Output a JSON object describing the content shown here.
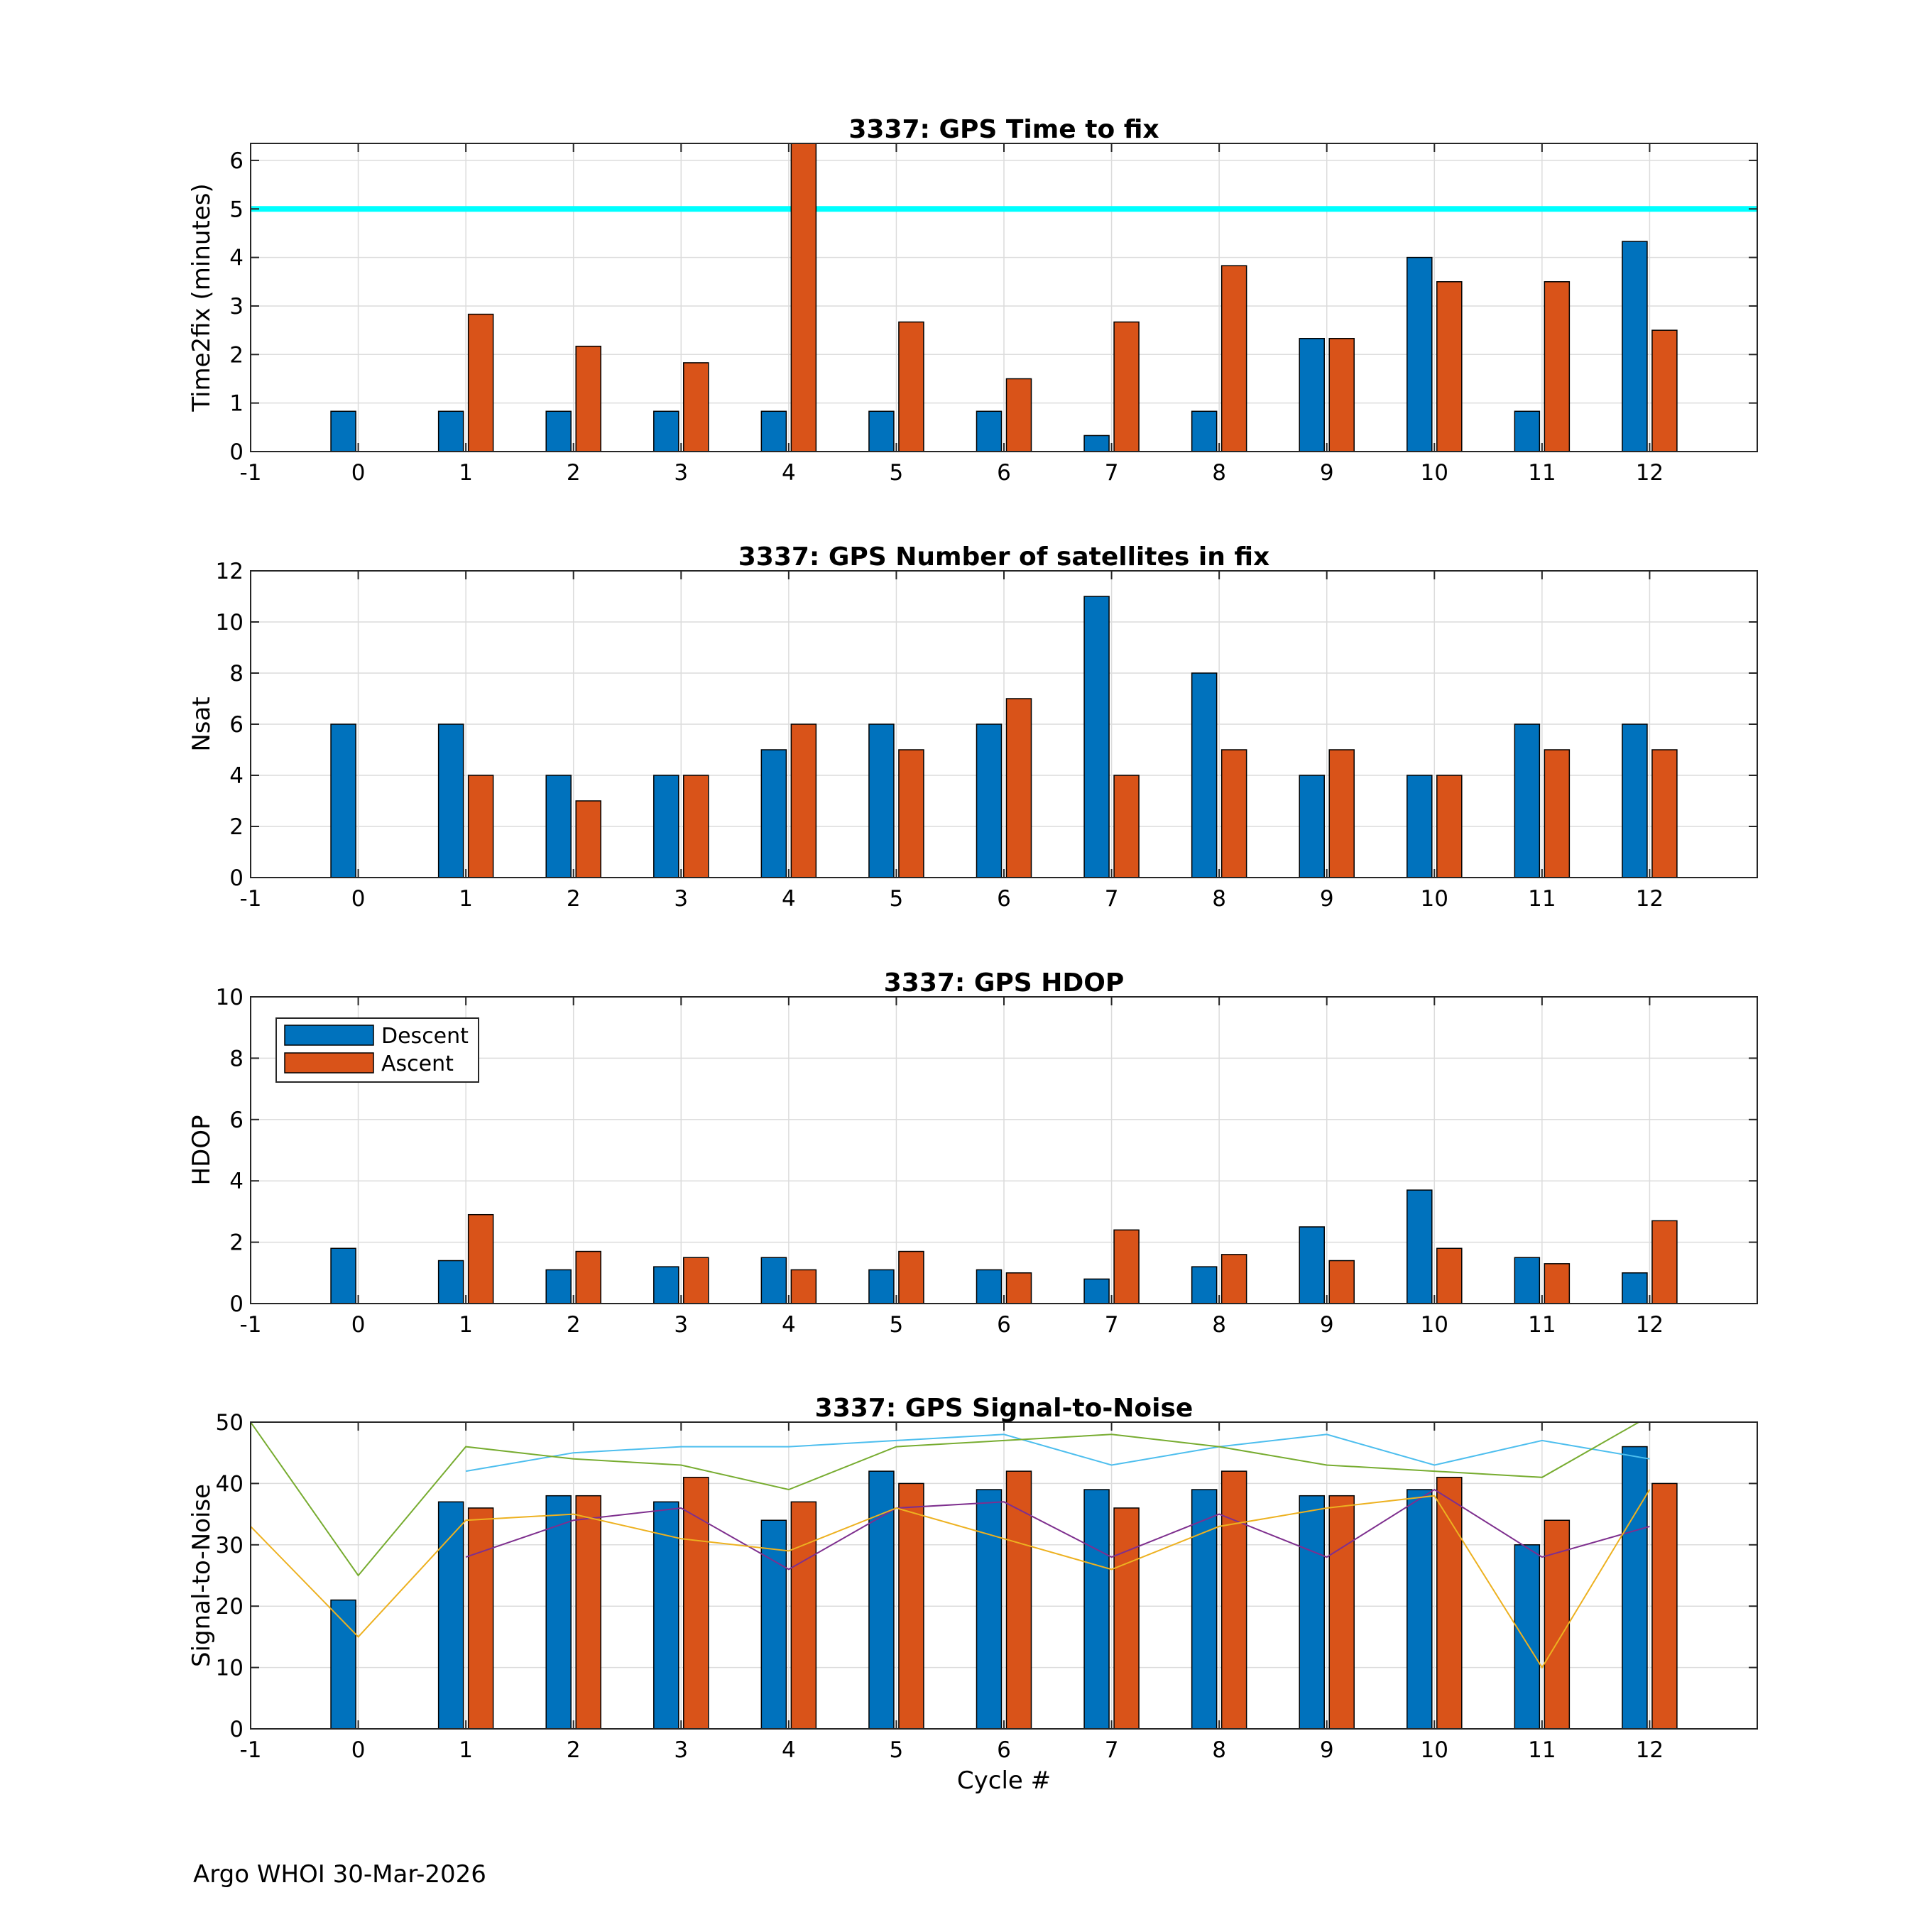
{
  "figure": {
    "footer": "Argo WHOI 30-Mar-2026",
    "colors": {
      "descent": "#0072BD",
      "ascent": "#D95319",
      "threshold": "#00FFFF",
      "snr_lines": [
        "#4DBEEE",
        "#77AC30",
        "#7E2F8E",
        "#EDB120"
      ]
    }
  },
  "chart_data": [
    {
      "type": "bar",
      "title": "3337: GPS Time to fix",
      "xlabel": "",
      "ylabel": "Time2fix (minutes)",
      "xlim": [
        -1,
        13
      ],
      "ylim": [
        0,
        6.35
      ],
      "xticks": [
        "-1",
        "0",
        "1",
        "2",
        "3",
        "4",
        "5",
        "6",
        "7",
        "8",
        "9",
        "10",
        "11",
        "12"
      ],
      "yticks": [
        "0",
        "1",
        "2",
        "3",
        "4",
        "5",
        "6"
      ],
      "grid": true,
      "categories": [
        0,
        1,
        2,
        3,
        4,
        5,
        6,
        7,
        8,
        9,
        10,
        11,
        12
      ],
      "series": [
        {
          "name": "Descent",
          "values": [
            0.83,
            0.83,
            0.83,
            0.83,
            0.83,
            0.83,
            0.83,
            0.33,
            0.83,
            2.33,
            4.0,
            0.83,
            4.33
          ]
        },
        {
          "name": "Ascent",
          "values": [
            null,
            2.83,
            2.17,
            1.83,
            6.35,
            2.67,
            1.5,
            2.67,
            3.83,
            2.33,
            3.5,
            3.5,
            2.5
          ]
        }
      ],
      "threshold": 5
    },
    {
      "type": "bar",
      "title": "3337: GPS Number of satellites in fix",
      "xlabel": "",
      "ylabel": "Nsat",
      "xlim": [
        -1,
        13
      ],
      "ylim": [
        0,
        12
      ],
      "xticks": [
        "-1",
        "0",
        "1",
        "2",
        "3",
        "4",
        "5",
        "6",
        "7",
        "8",
        "9",
        "10",
        "11",
        "12"
      ],
      "yticks": [
        "0",
        "2",
        "4",
        "6",
        "8",
        "10",
        "12"
      ],
      "grid": true,
      "categories": [
        0,
        1,
        2,
        3,
        4,
        5,
        6,
        7,
        8,
        9,
        10,
        11,
        12
      ],
      "series": [
        {
          "name": "Descent",
          "values": [
            6,
            6,
            4,
            4,
            5,
            6,
            6,
            11,
            8,
            4,
            4,
            6,
            6
          ]
        },
        {
          "name": "Ascent",
          "values": [
            null,
            4,
            3,
            4,
            6,
            5,
            7,
            4,
            5,
            5,
            4,
            5,
            5
          ]
        }
      ]
    },
    {
      "type": "bar",
      "title": "3337: GPS HDOP",
      "xlabel": "",
      "ylabel": "HDOP",
      "xlim": [
        -1,
        13
      ],
      "ylim": [
        0,
        10
      ],
      "xticks": [
        "-1",
        "0",
        "1",
        "2",
        "3",
        "4",
        "5",
        "6",
        "7",
        "8",
        "9",
        "10",
        "11",
        "12"
      ],
      "yticks": [
        "0",
        "2",
        "4",
        "6",
        "8",
        "10"
      ],
      "grid": true,
      "legend": {
        "position": "top-left",
        "entries": [
          "Descent",
          "Ascent"
        ]
      },
      "categories": [
        0,
        1,
        2,
        3,
        4,
        5,
        6,
        7,
        8,
        9,
        10,
        11,
        12
      ],
      "series": [
        {
          "name": "Descent",
          "values": [
            1.8,
            1.4,
            1.1,
            1.2,
            1.5,
            1.1,
            1.1,
            0.8,
            1.2,
            2.5,
            3.7,
            1.5,
            1.0
          ]
        },
        {
          "name": "Ascent",
          "values": [
            null,
            2.9,
            1.7,
            1.5,
            1.1,
            1.7,
            1.0,
            2.4,
            1.6,
            1.4,
            1.8,
            1.3,
            2.7
          ]
        }
      ]
    },
    {
      "type": "bar",
      "title": "3337: GPS Signal-to-Noise",
      "xlabel": "Cycle #",
      "ylabel": "Signal-to-Noise",
      "xlim": [
        -1,
        13
      ],
      "ylim": [
        0,
        50
      ],
      "xticks": [
        "-1",
        "0",
        "1",
        "2",
        "3",
        "4",
        "5",
        "6",
        "7",
        "8",
        "9",
        "10",
        "11",
        "12"
      ],
      "yticks": [
        "0",
        "10",
        "20",
        "30",
        "40",
        "50"
      ],
      "grid": true,
      "categories": [
        0,
        1,
        2,
        3,
        4,
        5,
        6,
        7,
        8,
        9,
        10,
        11,
        12
      ],
      "series": [
        {
          "name": "Descent",
          "values": [
            21,
            37,
            38,
            37,
            34,
            42,
            39,
            39,
            39,
            38,
            39,
            30,
            46
          ]
        },
        {
          "name": "Ascent",
          "values": [
            null,
            36,
            38,
            41,
            37,
            40,
            42,
            36,
            42,
            38,
            41,
            34,
            40
          ]
        }
      ],
      "lines": [
        {
          "name": "line-blue",
          "x": [
            1,
            2,
            3,
            4,
            5,
            6,
            7,
            8,
            9,
            10,
            11,
            12
          ],
          "y": [
            42,
            45,
            46,
            46,
            47,
            48,
            43,
            46,
            48,
            43,
            47,
            44
          ]
        },
        {
          "name": "line-green",
          "x": [
            -1,
            0,
            1,
            2,
            3,
            4,
            5,
            6,
            7,
            8,
            9,
            10,
            11,
            12
          ],
          "y": [
            50,
            25,
            46,
            44,
            43,
            39,
            46,
            47,
            48,
            46,
            43,
            42,
            41,
            51
          ]
        },
        {
          "name": "line-purple",
          "x": [
            1,
            2,
            3,
            4,
            5,
            6,
            7,
            8,
            9,
            10,
            11,
            12
          ],
          "y": [
            28,
            34,
            36,
            26,
            36,
            37,
            28,
            35,
            28,
            39,
            28,
            33
          ]
        },
        {
          "name": "line-yellow",
          "x": [
            -1,
            0,
            1,
            2,
            3,
            4,
            5,
            6,
            7,
            8,
            9,
            10,
            11,
            12
          ],
          "y": [
            33,
            15,
            34,
            35,
            31,
            29,
            36,
            31,
            26,
            33,
            36,
            38,
            10,
            39
          ]
        }
      ]
    }
  ]
}
